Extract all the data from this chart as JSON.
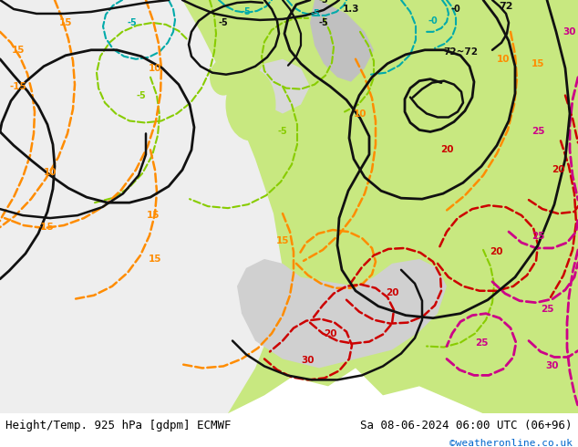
{
  "title_left": "Height/Temp. 925 hPa [gdpm] ECMWF",
  "title_right": "Sa 08-06-2024 06:00 UTC (06+96)",
  "credit": "©weatheronline.co.uk",
  "credit_color": "#0066cc",
  "fig_width": 6.34,
  "fig_height": 4.9,
  "dpi": 100,
  "title_fontsize": 9.0,
  "credit_fontsize": 8.0,
  "bg_light_green": "#c8e88a",
  "bg_white_gray": "#e8e8e8",
  "bg_white": "#f0f0f0",
  "land_gray": "#b0b0b0",
  "bottom_bar": "#d8d8d8"
}
